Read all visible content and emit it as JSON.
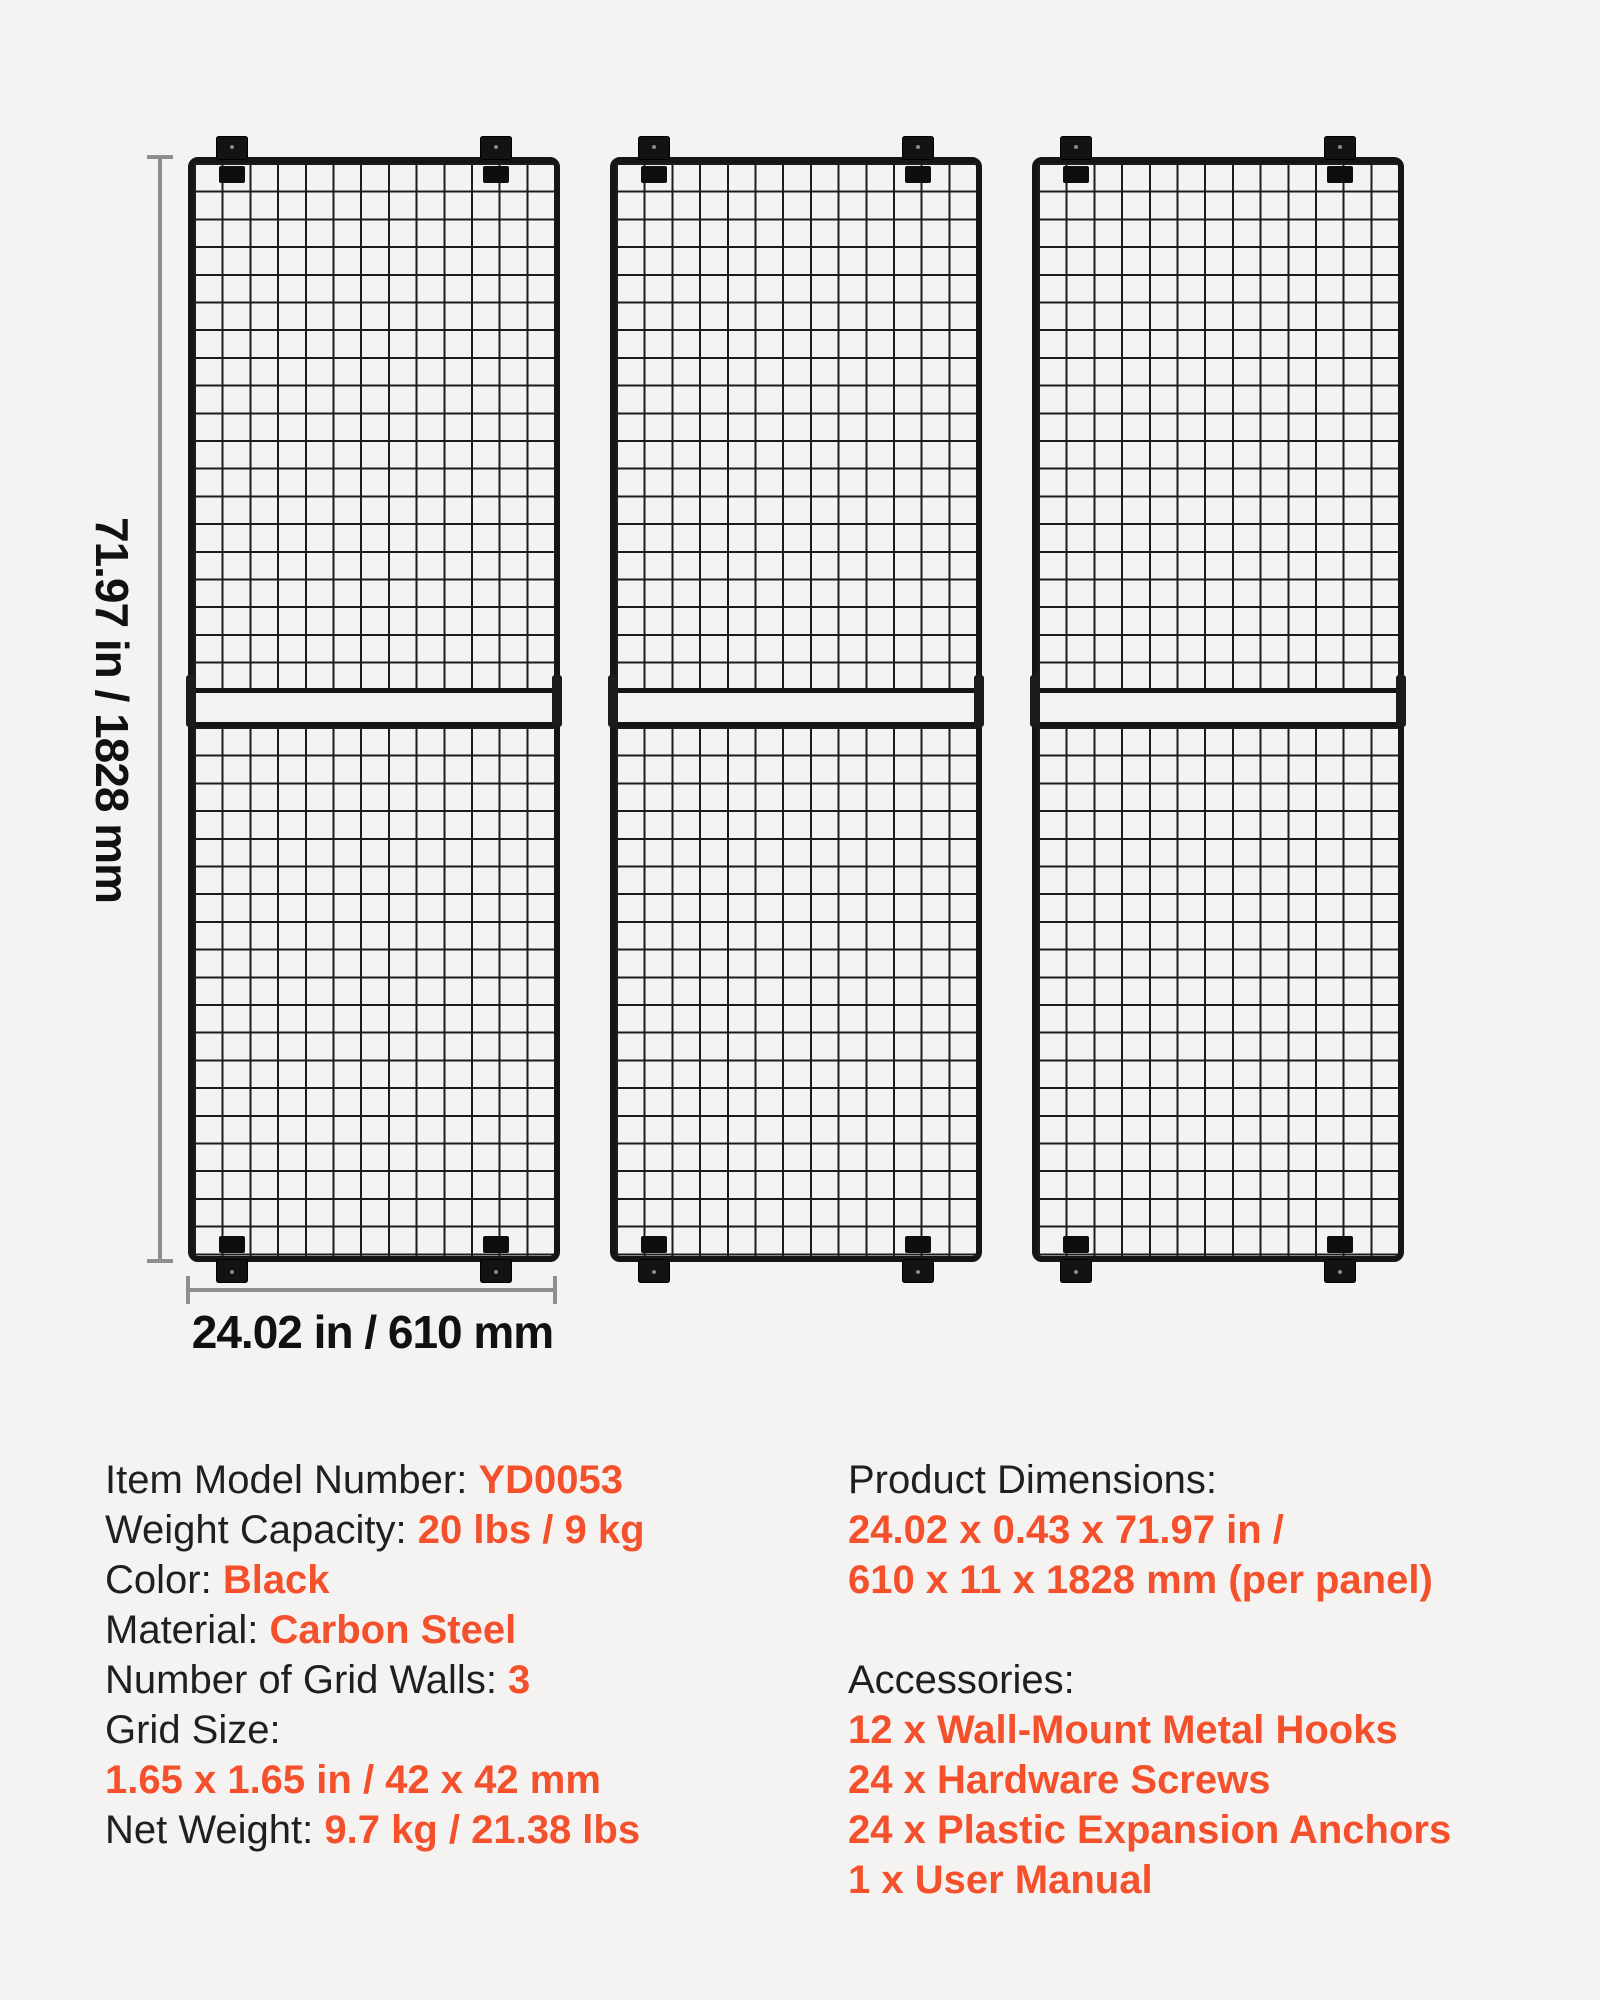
{
  "page": {
    "background_color": "#f4f3f2",
    "accent_color": "#f4502b",
    "text_color": "#1f1f1f",
    "dimension_line_color": "#8e8e8e",
    "panel_color": "#151515"
  },
  "diagram": {
    "panel_count": 3,
    "height_label": "71.97 in / 1828 mm",
    "width_label": "24.02 in / 610 mm"
  },
  "specs_left": [
    {
      "label": "Item Model Number: ",
      "value": "YD0053"
    },
    {
      "label": "Weight Capacity: ",
      "value": "20 lbs / 9 kg"
    },
    {
      "label": "Color: ",
      "value": "Black"
    },
    {
      "label": "Material: ",
      "value": "Carbon Steel"
    },
    {
      "label": "Number of Grid Walls: ",
      "value": "3"
    },
    {
      "label": "Grid Size:",
      "value": ""
    },
    {
      "label": "",
      "value": "1.65 x 1.65 in / 42 x 42 mm"
    },
    {
      "label": "Net Weight: ",
      "value": "9.7 kg / 21.38 lbs"
    }
  ],
  "specs_right": [
    {
      "label": "Product Dimensions:",
      "value": ""
    },
    {
      "label": "",
      "value": "24.02 x 0.43 x 71.97 in /"
    },
    {
      "label": "",
      "value": "610 x 11 x 1828 mm (per panel)"
    },
    {
      "label": "",
      "value": ""
    },
    {
      "label": "Accessories:",
      "value": ""
    },
    {
      "label": "",
      "value": "12 x Wall-Mount Metal Hooks"
    },
    {
      "label": "",
      "value": "24 x Hardware Screws"
    },
    {
      "label": "",
      "value": "24 x Plastic Expansion Anchors"
    },
    {
      "label": "",
      "value": "1 x User Manual"
    }
  ]
}
